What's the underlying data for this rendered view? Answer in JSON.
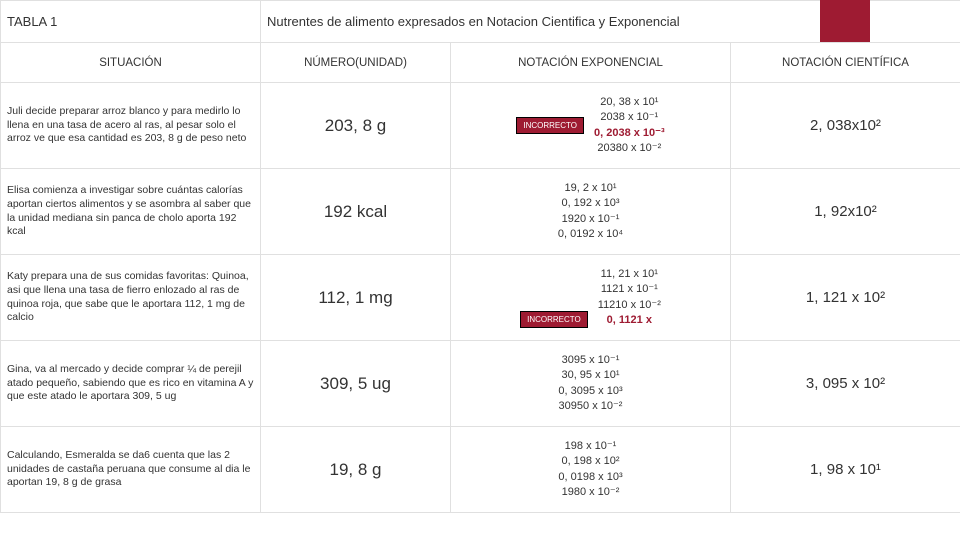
{
  "colors": {
    "accent": "#9e1b32",
    "border": "#e0e0e0",
    "text": "#333333",
    "bg": "#ffffff"
  },
  "header": {
    "label": "TABLA 1",
    "title": "Nutrentes de alimento expresados en Notacion Cientifica y Exponencial"
  },
  "columns": {
    "situation": "SITUACIÓN",
    "numero": "NÚMERO(UNIDAD)",
    "exponencial": "NOTACIÓN EXPONENCIAL",
    "cientifica": "NOTACIÓN CIENTÍFICA"
  },
  "badge": "INCORRECTO",
  "rows": [
    {
      "situation": "Juli decide preparar arroz blanco y para medirlo lo llena en una tasa de acero al ras, al pesar solo el arroz ve que esa cantidad es 203, 8 g de peso neto",
      "numero": "203, 8 g",
      "exp_l1": "20, 38 x 10¹",
      "exp_l2": "2038 x 10⁻¹",
      "exp_l3": "0, 2038 x 10⁻³",
      "exp_l4": "20380 x 10⁻²",
      "exp_badge": true,
      "exp_badge_pos": "left",
      "exp_highlight": 3,
      "cientifica": "2, 038x10²"
    },
    {
      "situation": "Elisa comienza a investigar sobre cuántas calorías aportan ciertos alimentos y se asombra al saber que la unidad mediana sin panca de cholo aporta 192 kcal",
      "numero": "192 kcal",
      "exp_l1": "19, 2 x 10¹",
      "exp_l2": "0, 192 x 10³",
      "exp_l3": "1920 x 10⁻¹",
      "exp_l4": "0, 0192 x 10⁴",
      "exp_badge": false,
      "cientifica": "1, 92x10²"
    },
    {
      "situation": "Katy prepara una de sus comidas favoritas: Quinoa, asi que llena una tasa de fierro enlozado al ras de quinoa roja, que sabe que le aportara 112, 1 mg de calcio",
      "numero": "112, 1 mg",
      "exp_l1": "11, 21 x 10¹",
      "exp_l2": "1121 x 10⁻¹",
      "exp_l3": "11210 x 10⁻²",
      "exp_l4": "0, 1121 x",
      "exp_badge": true,
      "exp_badge_pos": "bottom-left",
      "exp_highlight": 4,
      "cientifica": "1, 121 x 10²"
    },
    {
      "situation": "Gina, va al mercado y decide comprar ¼ de perejil atado pequeño, sabiendo que es rico en vitamina A y que este atado le aportara 309, 5 ug",
      "numero": "309, 5 ug",
      "exp_l1": "3095 x 10⁻¹",
      "exp_l2": "30, 95 x 10¹",
      "exp_l3": "0, 3095 x 10³",
      "exp_l4": "30950 x 10⁻²",
      "exp_badge": false,
      "cientifica": "3, 095 x 10²"
    },
    {
      "situation": "Calculando, Esmeralda se da6 cuenta que las 2 unidades de castaña peruana que consume al dia le aportan 19, 8 g de grasa",
      "numero": "19, 8 g",
      "exp_l1": "198 x 10⁻¹",
      "exp_l2": "0, 198 x 10²",
      "exp_l3": "0, 0198 x 10³",
      "exp_l4": "1980 x 10⁻²",
      "exp_badge": false,
      "cientifica": "1, 98 x 10¹"
    }
  ]
}
